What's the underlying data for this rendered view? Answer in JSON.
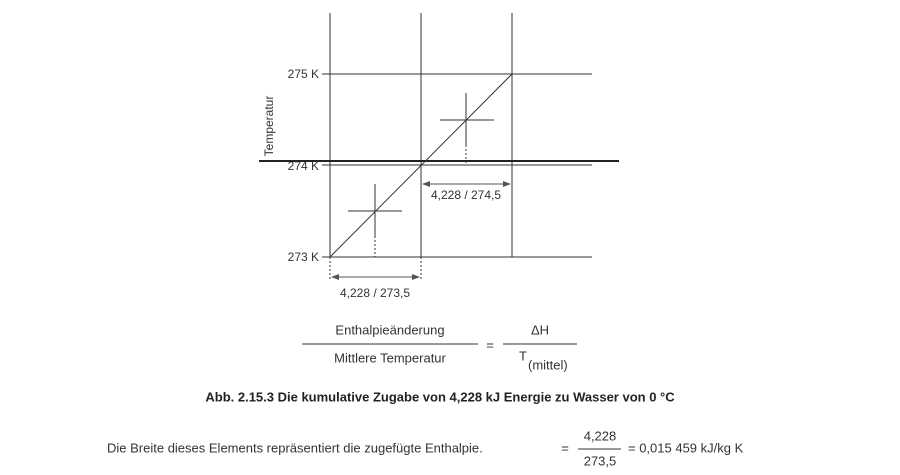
{
  "diagram": {
    "y_axis_title": "Temperatur",
    "y_labels": [
      "275 K",
      "274 K",
      "273 K"
    ],
    "upper_width_label": "4,228 / 274,5",
    "lower_width_label": "4,228 / 273,5"
  },
  "formula": {
    "left_numerator": "Enthalpieänderung",
    "left_denominator": "Mittlere Temperatur",
    "equals": "=",
    "right_numerator": "ΔH",
    "right_denominator": "T",
    "right_denominator_subscript": "(mittel)"
  },
  "caption": "Abb. 2.15.3 Die kumulative Zugabe von 4,228 kJ Energie zu Wasser von 0 °C",
  "footer": {
    "text": "Die Breite dieses Elements repräsentiert die zugefügte Enthalpie.",
    "equals": "=",
    "numerator": "4,228",
    "denominator": "273,5",
    "result": "= 0,015 459 kJ/kg K"
  }
}
